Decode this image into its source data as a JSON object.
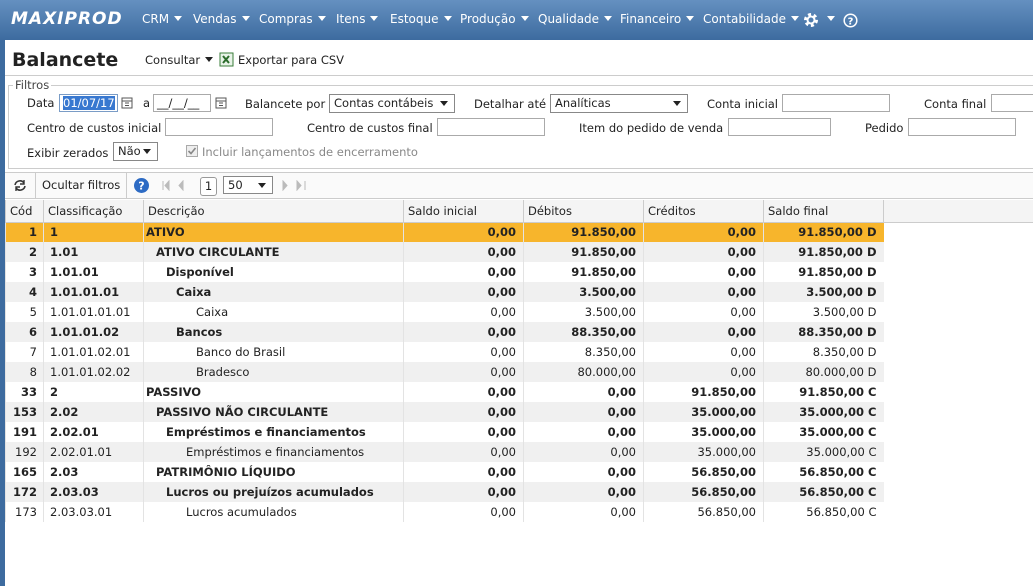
{
  "nav": {
    "logo": "MAXIPROD",
    "menu": [
      "CRM",
      "Vendas",
      "Compras",
      "Itens",
      "Estoque",
      "Produção",
      "Qualidade",
      "Financeiro",
      "Contabilidade"
    ]
  },
  "header": {
    "title": "Balancete",
    "consult": "Consultar",
    "export": "Exportar para CSV"
  },
  "filters": {
    "legend": "Filtros",
    "date_label": "Data",
    "date_from": "01/07/17",
    "date_sep": "a",
    "date_to": "__/__/__",
    "balancete_por": {
      "label": "Balancete por",
      "value": "Contas contábeis"
    },
    "detalhar": {
      "label": "Detalhar até",
      "value": "Analíticas"
    },
    "conta_inicial": "Conta inicial",
    "conta_final": "Conta final",
    "cc_inicial": "Centro de custos inicial",
    "cc_final": "Centro de custos final",
    "item_pedido": "Item do pedido de venda",
    "pedido": "Pedido",
    "exibir_zerados": {
      "label": "Exibir zerados",
      "value": "Não"
    },
    "incluir": "Incluir lançamentos de encerramento"
  },
  "toolbar": {
    "hide": "Ocultar filtros",
    "page": "1",
    "page_size": "50"
  },
  "table": {
    "columns": [
      "Cód",
      "Classificação",
      "Descrição",
      "Saldo inicial",
      "Débitos",
      "Créditos",
      "Saldo final"
    ],
    "rows": [
      [
        "1",
        "1",
        "ATIVO",
        "0,00",
        "91.850,00",
        "0,00",
        "91.850,00 D"
      ],
      [
        "2",
        "1.01",
        "ATIVO CIRCULANTE",
        "0,00",
        "91.850,00",
        "0,00",
        "91.850,00 D"
      ],
      [
        "3",
        "1.01.01",
        "Disponível",
        "0,00",
        "91.850,00",
        "0,00",
        "91.850,00 D"
      ],
      [
        "4",
        "1.01.01.01",
        "Caixa",
        "0,00",
        "3.500,00",
        "0,00",
        "3.500,00 D"
      ],
      [
        "5",
        "1.01.01.01.01",
        "Caixa",
        "0,00",
        "3.500,00",
        "0,00",
        "3.500,00 D"
      ],
      [
        "6",
        "1.01.01.02",
        "Bancos",
        "0,00",
        "88.350,00",
        "0,00",
        "88.350,00 D"
      ],
      [
        "7",
        "1.01.01.02.01",
        "Banco do Brasil",
        "0,00",
        "8.350,00",
        "0,00",
        "8.350,00 D"
      ],
      [
        "8",
        "1.01.01.02.02",
        "Bradesco",
        "0,00",
        "80.000,00",
        "0,00",
        "80.000,00 D"
      ],
      [
        "33",
        "2",
        "PASSIVO",
        "0,00",
        "0,00",
        "91.850,00",
        "91.850,00 C"
      ],
      [
        "153",
        "2.02",
        "PASSIVO NÃO CIRCULANTE",
        "0,00",
        "0,00",
        "35.000,00",
        "35.000,00 C"
      ],
      [
        "191",
        "2.02.01",
        "Empréstimos e financiamentos",
        "0,00",
        "0,00",
        "35.000,00",
        "35.000,00 C"
      ],
      [
        "192",
        "2.02.01.01",
        "Empréstimos e financiamentos",
        "0,00",
        "0,00",
        "35.000,00",
        "35.000,00 C"
      ],
      [
        "165",
        "2.03",
        "PATRIMÔNIO LÍQUIDO",
        "0,00",
        "0,00",
        "56.850,00",
        "56.850,00 C"
      ],
      [
        "172",
        "2.03.03",
        "Lucros ou prejuízos acumulados",
        "0,00",
        "0,00",
        "56.850,00",
        "56.850,00 C"
      ],
      [
        "173",
        "2.03.03.01",
        "Lucros acumulados",
        "0,00",
        "0,00",
        "56.850,00",
        "56.850,00 C"
      ]
    ]
  }
}
